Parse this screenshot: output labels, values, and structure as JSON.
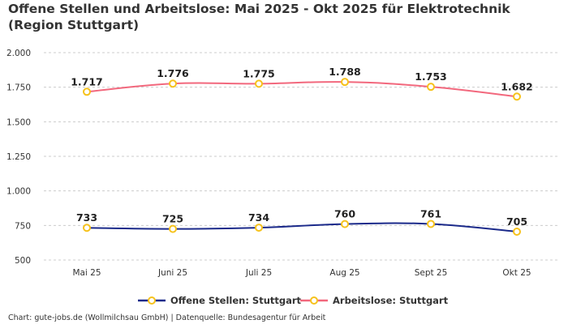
{
  "chart_data": {
    "type": "line",
    "title": "Offene Stellen und Arbeitslose: Mai 2025 - Okt 2025 für Elektrotechnik (Region Stuttgart)",
    "categories": [
      "Mai 25",
      "Juni 25",
      "Juli 25",
      "Aug 25",
      "Sept 25",
      "Okt 25"
    ],
    "series": [
      {
        "name": "Offene Stellen: Stuttgart",
        "values": [
          733,
          725,
          734,
          760,
          761,
          705
        ],
        "labels": [
          "733",
          "725",
          "734",
          "760",
          "761",
          "705"
        ],
        "color": "#1b2a8a"
      },
      {
        "name": "Arbeitslose: Stuttgart",
        "values": [
          1717,
          1776,
          1775,
          1788,
          1753,
          1682
        ],
        "labels": [
          "1.717",
          "1.776",
          "1.775",
          "1.788",
          "1.753",
          "1.682"
        ],
        "color": "#f2687d"
      }
    ],
    "marker_color": "#f6c21c",
    "ylim": [
      500,
      2000
    ],
    "yticks": [
      500,
      750,
      1000,
      1250,
      1500,
      1750,
      2000
    ],
    "ytick_labels": [
      "500",
      "750",
      "1.000",
      "1.250",
      "1.500",
      "1.750",
      "2.000"
    ],
    "grid": true,
    "legend": "bottom"
  },
  "footer": "Chart: gute-jobs.de (Wollmilchsau GmbH) | Datenquelle: Bundesagentur für Arbeit"
}
